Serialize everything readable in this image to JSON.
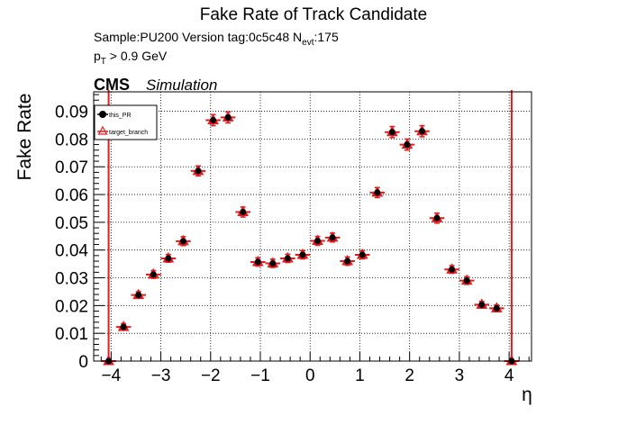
{
  "header": {
    "title": "Fake Rate of Track Candidate",
    "sample_prefix": "Sample:PU200   Version tag:0c5c48  N",
    "sample_sub": "evt",
    "sample_suffix": ":175",
    "cut_p": "p",
    "cut_sub": "T",
    "cut_rest": " > 0.9 GeV",
    "cms": "CMS",
    "simulation": "Simulation"
  },
  "colors": {
    "this_pr": "#000000",
    "target_branch": "#e41a1c"
  },
  "chart_data": {
    "type": "scatter",
    "title": "Fake Rate of Track Candidate",
    "xlabel": "η",
    "ylabel": "Fake Rate",
    "xlim": [
      -4.35,
      4.45
    ],
    "ylim": [
      0,
      0.097
    ],
    "grid": true,
    "legend_position": "top-left",
    "x_ticks": [
      -4,
      -3,
      -2,
      -1,
      0,
      1,
      2,
      3,
      4
    ],
    "x_tick_labels": [
      "−4",
      "−3",
      "−2",
      "−1",
      "0",
      "1",
      "2",
      "3",
      "4"
    ],
    "y_ticks": [
      0,
      0.01,
      0.02,
      0.03,
      0.04,
      0.05,
      0.06,
      0.07,
      0.08,
      0.09
    ],
    "y_tick_labels": [
      "0",
      "0.01",
      "0.02",
      "0.03",
      "0.04",
      "0.05",
      "0.06",
      "0.07",
      "0.08",
      "0.09"
    ],
    "x": [
      -4.05,
      -3.75,
      -3.45,
      -3.15,
      -2.85,
      -2.55,
      -2.25,
      -1.95,
      -1.65,
      -1.35,
      -1.05,
      -0.75,
      -0.45,
      -0.15,
      0.15,
      0.45,
      0.75,
      1.05,
      1.35,
      1.65,
      1.95,
      2.25,
      2.55,
      2.85,
      3.15,
      3.45,
      3.75,
      4.05
    ],
    "x_err": 0.15,
    "series": [
      {
        "name": "this_PR",
        "values": [
          0.0,
          0.0123,
          0.0238,
          0.0312,
          0.037,
          0.0432,
          0.0685,
          0.0868,
          0.0878,
          0.0537,
          0.0357,
          0.0352,
          0.037,
          0.0383,
          0.0433,
          0.0445,
          0.036,
          0.0383,
          0.0607,
          0.0825,
          0.078,
          0.0828,
          0.0515,
          0.033,
          0.029,
          0.0203,
          0.019,
          0.0
        ],
        "errors": [
          0.0,
          0.0012,
          0.0012,
          0.0014,
          0.0014,
          0.0016,
          0.0018,
          0.002,
          0.002,
          0.0018,
          0.0015,
          0.0015,
          0.0015,
          0.0015,
          0.0016,
          0.0016,
          0.0015,
          0.0015,
          0.0018,
          0.002,
          0.002,
          0.002,
          0.0018,
          0.0014,
          0.0014,
          0.0012,
          0.0012,
          0.0
        ]
      },
      {
        "name": "target_branch",
        "values": [
          0.0,
          0.0123,
          0.0238,
          0.0312,
          0.037,
          0.0432,
          0.0685,
          0.0868,
          0.0878,
          0.0537,
          0.0357,
          0.0352,
          0.037,
          0.0383,
          0.0433,
          0.0445,
          0.036,
          0.0383,
          0.0607,
          0.0825,
          0.078,
          0.0828,
          0.0515,
          0.033,
          0.029,
          0.0203,
          0.019,
          0.0
        ],
        "errors": [
          0.0,
          0.0012,
          0.0012,
          0.0014,
          0.0014,
          0.0016,
          0.0018,
          0.002,
          0.002,
          0.0018,
          0.0015,
          0.0015,
          0.0015,
          0.0015,
          0.0016,
          0.0016,
          0.0015,
          0.0015,
          0.0018,
          0.002,
          0.002,
          0.002,
          0.0018,
          0.0014,
          0.0014,
          0.0012,
          0.0012,
          0.0
        ]
      }
    ],
    "boundary_lines_x": [
      -4.05,
      4.05
    ]
  }
}
